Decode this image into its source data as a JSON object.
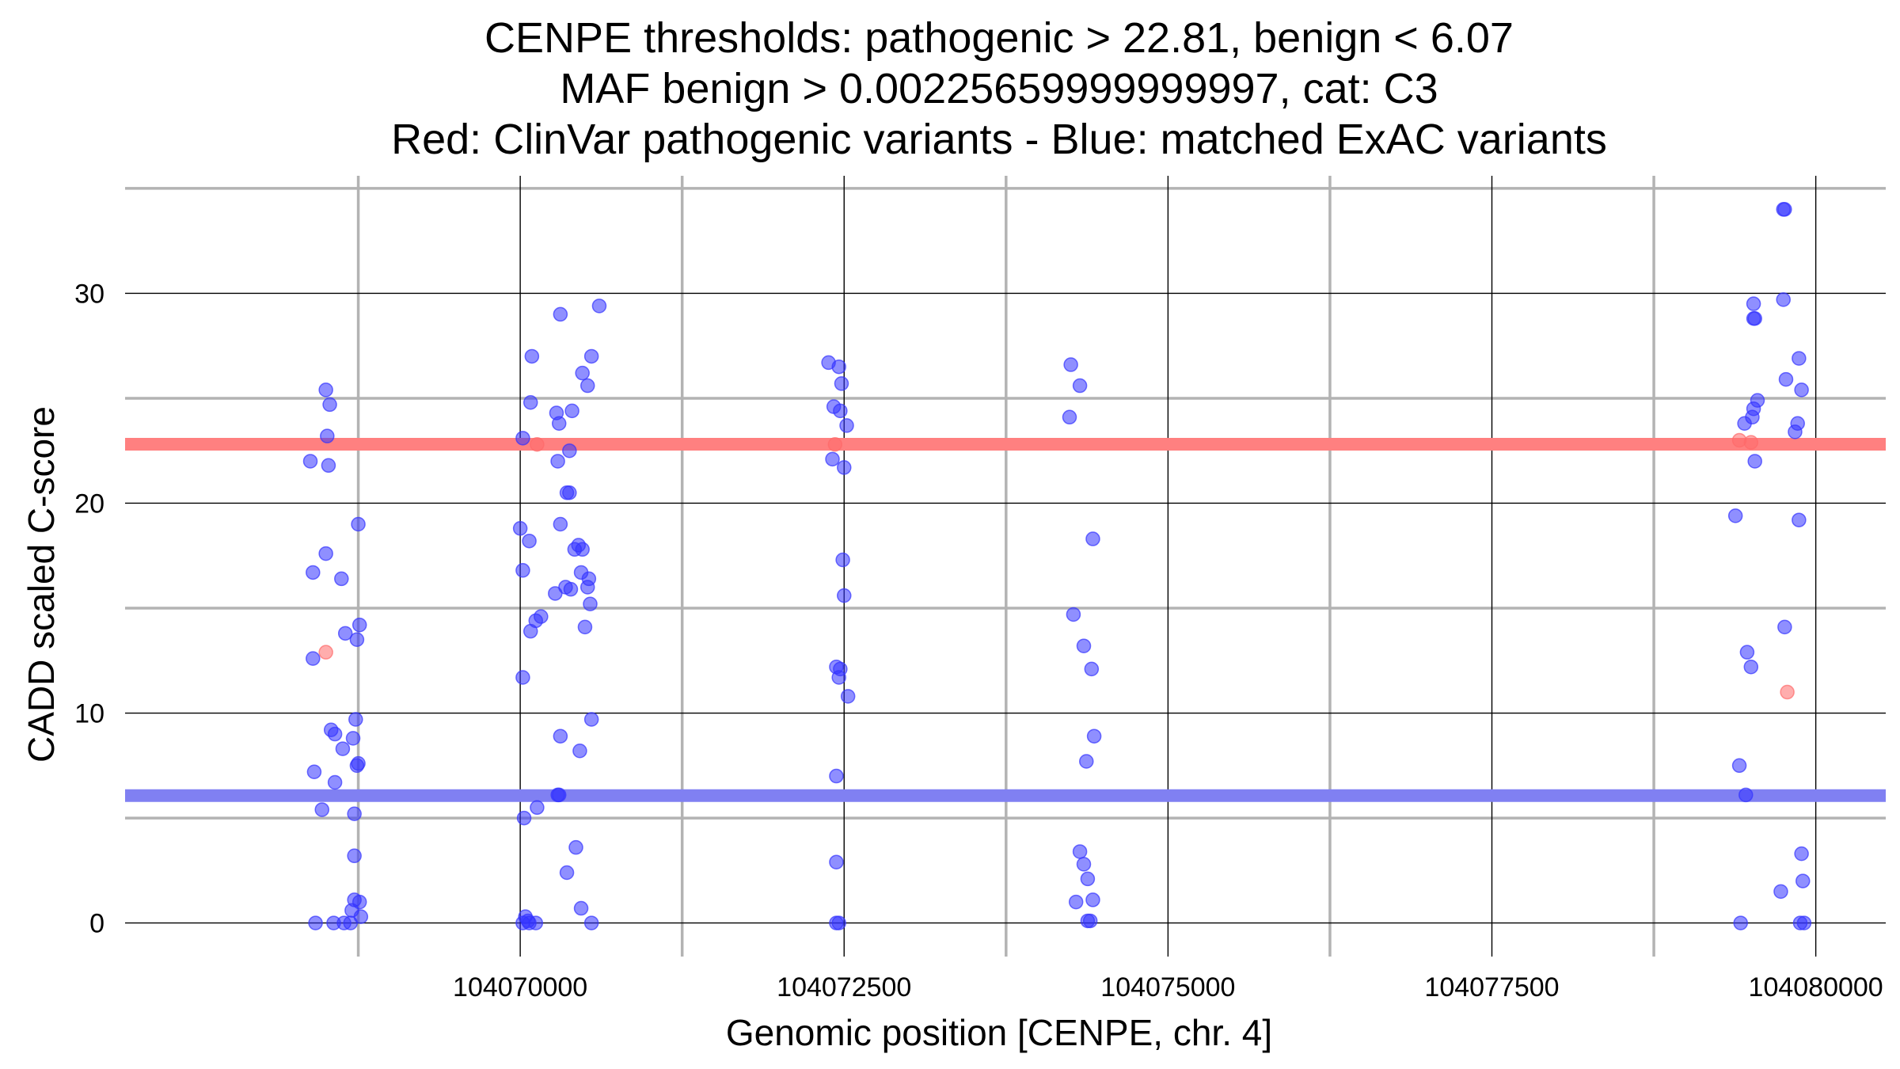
{
  "chart_data": {
    "type": "scatter",
    "title": [
      "CENPE thresholds: pathogenic > 22.81, benign < 6.07",
      "MAF benign > 0.00225659999999997, cat: C3",
      "Red: ClinVar pathogenic variants - Blue: matched ExAC variants"
    ],
    "xlabel": "Genomic position [CENPE, chr. 4]",
    "ylabel": "CADD scaled C-score",
    "xlim": [
      104066950,
      104080540
    ],
    "ylim": [
      -1.6,
      35.6
    ],
    "x_ticks": [
      104070000,
      104072500,
      104075000,
      104077500,
      104080000
    ],
    "x_tick_labels": [
      "104070000",
      "104072500",
      "104075000",
      "104077500",
      "104080000"
    ],
    "y_ticks": [
      0,
      10,
      20,
      30
    ],
    "y_tick_labels": [
      "0",
      "10",
      "20",
      "30"
    ],
    "grid": "on",
    "thresholds": [
      {
        "name": "pathogenic",
        "value": 22.81,
        "color": "#ff8080"
      },
      {
        "name": "benign",
        "value": 6.07,
        "color": "#8080f2"
      }
    ],
    "series": [
      {
        "name": "ClinVar pathogenic variants",
        "color": "#ff6a6a",
        "points": [
          [
            104068500,
            12.9
          ],
          [
            104070130,
            22.8
          ],
          [
            104072430,
            22.8
          ],
          [
            104079410,
            23.0
          ],
          [
            104079500,
            22.9
          ],
          [
            104079780,
            11.0
          ]
        ]
      },
      {
        "name": "matched ExAC variants",
        "color": "#3333ff",
        "points": [
          [
            104068500,
            25.4
          ],
          [
            104068530,
            24.7
          ],
          [
            104068510,
            23.2
          ],
          [
            104068380,
            22.0
          ],
          [
            104068520,
            21.8
          ],
          [
            104068750,
            19.0
          ],
          [
            104068500,
            17.6
          ],
          [
            104068400,
            16.7
          ],
          [
            104068620,
            16.4
          ],
          [
            104068760,
            14.2
          ],
          [
            104068650,
            13.8
          ],
          [
            104068740,
            13.5
          ],
          [
            104068400,
            12.6
          ],
          [
            104068540,
            9.2
          ],
          [
            104068730,
            9.7
          ],
          [
            104068570,
            9.0
          ],
          [
            104068710,
            8.8
          ],
          [
            104068630,
            8.3
          ],
          [
            104068750,
            7.6
          ],
          [
            104068740,
            7.5
          ],
          [
            104068410,
            7.2
          ],
          [
            104068570,
            6.7
          ],
          [
            104068470,
            5.4
          ],
          [
            104068720,
            5.2
          ],
          [
            104068720,
            3.2
          ],
          [
            104068720,
            1.1
          ],
          [
            104068760,
            1.0
          ],
          [
            104068700,
            0.6
          ],
          [
            104068770,
            0.3
          ],
          [
            104068420,
            0.0
          ],
          [
            104068560,
            0.0
          ],
          [
            104068640,
            0.0
          ],
          [
            104068690,
            0.0
          ],
          [
            104070090,
            27.0
          ],
          [
            104070610,
            29.4
          ],
          [
            104070310,
            29.0
          ],
          [
            104070550,
            27.0
          ],
          [
            104070080,
            24.8
          ],
          [
            104070480,
            26.2
          ],
          [
            104070520,
            25.6
          ],
          [
            104070280,
            24.3
          ],
          [
            104070400,
            24.4
          ],
          [
            104070300,
            23.8
          ],
          [
            104070020,
            23.1
          ],
          [
            104070380,
            22.5
          ],
          [
            104070290,
            22.0
          ],
          [
            104070360,
            20.5
          ],
          [
            104070380,
            20.5
          ],
          [
            104070000,
            18.8
          ],
          [
            104070310,
            19.0
          ],
          [
            104070070,
            18.2
          ],
          [
            104070450,
            18.0
          ],
          [
            104070420,
            17.8
          ],
          [
            104070480,
            17.8
          ],
          [
            104070020,
            16.8
          ],
          [
            104070470,
            16.7
          ],
          [
            104070530,
            16.4
          ],
          [
            104070350,
            16.0
          ],
          [
            104070520,
            16.0
          ],
          [
            104070390,
            15.9
          ],
          [
            104070270,
            15.7
          ],
          [
            104070540,
            15.2
          ],
          [
            104070160,
            14.6
          ],
          [
            104070120,
            14.4
          ],
          [
            104070500,
            14.1
          ],
          [
            104070080,
            13.9
          ],
          [
            104070020,
            11.7
          ],
          [
            104070550,
            9.7
          ],
          [
            104070310,
            8.9
          ],
          [
            104070460,
            8.2
          ],
          [
            104070290,
            6.1
          ],
          [
            104070300,
            6.1
          ],
          [
            104070130,
            5.5
          ],
          [
            104070030,
            5.0
          ],
          [
            104070430,
            3.6
          ],
          [
            104070360,
            2.4
          ],
          [
            104070470,
            0.7
          ],
          [
            104070040,
            0.3
          ],
          [
            104070060,
            0.1
          ],
          [
            104070020,
            0.0
          ],
          [
            104070070,
            0.0
          ],
          [
            104070120,
            0.0
          ],
          [
            104070550,
            0.0
          ],
          [
            104072380,
            26.7
          ],
          [
            104072460,
            26.5
          ],
          [
            104072480,
            25.7
          ],
          [
            104072420,
            24.6
          ],
          [
            104072470,
            24.4
          ],
          [
            104072520,
            23.7
          ],
          [
            104072410,
            22.1
          ],
          [
            104072500,
            21.7
          ],
          [
            104072490,
            17.3
          ],
          [
            104072500,
            15.6
          ],
          [
            104072440,
            12.2
          ],
          [
            104072470,
            12.1
          ],
          [
            104072460,
            11.7
          ],
          [
            104072530,
            10.8
          ],
          [
            104072440,
            7.0
          ],
          [
            104072440,
            2.9
          ],
          [
            104072440,
            0.0
          ],
          [
            104072460,
            0.0
          ],
          [
            104074250,
            26.6
          ],
          [
            104074320,
            25.6
          ],
          [
            104074240,
            24.1
          ],
          [
            104074420,
            18.3
          ],
          [
            104074270,
            14.7
          ],
          [
            104074350,
            13.2
          ],
          [
            104074410,
            12.1
          ],
          [
            104074430,
            8.9
          ],
          [
            104074370,
            7.7
          ],
          [
            104074320,
            3.4
          ],
          [
            104074350,
            2.8
          ],
          [
            104074380,
            2.1
          ],
          [
            104074420,
            1.1
          ],
          [
            104074290,
            1.0
          ],
          [
            104074380,
            0.1
          ],
          [
            104074400,
            0.1
          ],
          [
            104079750,
            34.0
          ],
          [
            104079760,
            34.0
          ],
          [
            104079750,
            29.7
          ],
          [
            104079520,
            29.5
          ],
          [
            104079530,
            28.8
          ],
          [
            104079520,
            28.8
          ],
          [
            104079870,
            26.9
          ],
          [
            104079770,
            25.9
          ],
          [
            104079890,
            25.4
          ],
          [
            104079550,
            24.9
          ],
          [
            104079520,
            24.5
          ],
          [
            104079510,
            24.1
          ],
          [
            104079860,
            23.8
          ],
          [
            104079450,
            23.8
          ],
          [
            104079840,
            23.4
          ],
          [
            104079530,
            22.0
          ],
          [
            104079380,
            19.4
          ],
          [
            104079870,
            19.2
          ],
          [
            104079760,
            14.1
          ],
          [
            104079470,
            12.9
          ],
          [
            104079500,
            12.2
          ],
          [
            104079410,
            7.5
          ],
          [
            104079460,
            6.1
          ],
          [
            104079890,
            3.3
          ],
          [
            104079730,
            1.5
          ],
          [
            104079900,
            2.0
          ],
          [
            104079420,
            0.0
          ],
          [
            104079880,
            0.0
          ],
          [
            104079910,
            0.0
          ]
        ]
      }
    ]
  }
}
